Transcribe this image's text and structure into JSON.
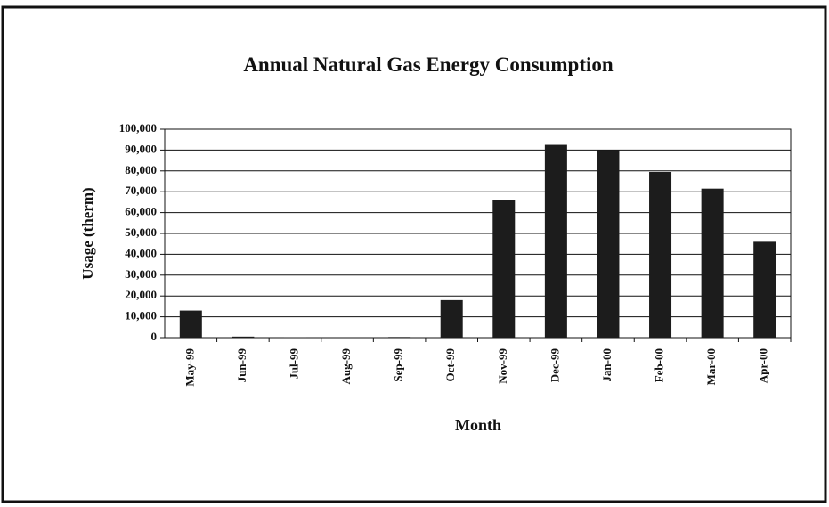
{
  "chart_data": {
    "type": "bar",
    "title": "Annual Natural Gas Energy Consumption",
    "x_label": "Month",
    "y_label": "Usage (therm)",
    "categories": [
      "May-99",
      "Jun-99",
      "Jul-99",
      "Aug-99",
      "Sep-99",
      "Oct-99",
      "Nov-99",
      "Dec-99",
      "Jan-00",
      "Feb-00",
      "Mar-00",
      "Apr-00"
    ],
    "values": [
      13000,
      500,
      200,
      0,
      300,
      18000,
      66000,
      92500,
      90000,
      79500,
      71500,
      46000
    ],
    "color": "#1c1c1c",
    "ylim": [
      0,
      100000
    ],
    "yticks": [
      0,
      {
        "value": 10000,
        "label": "10,000"
      },
      {
        "value": 20000,
        "label": "20,000"
      },
      {
        "value": 30000,
        "label": "30,000"
      },
      {
        "value": 40000,
        "label": "40,000"
      },
      {
        "value": 50000,
        "label": "50,000"
      },
      {
        "value": 60000,
        "label": "60,000"
      },
      {
        "value": 70000,
        "label": "70,000"
      },
      {
        "value": 80000,
        "label": "80,000"
      },
      {
        "value": 90000,
        "label": "90,000"
      },
      {
        "value": 100000,
        "label": "100,000"
      }
    ],
    "grid": true
  }
}
